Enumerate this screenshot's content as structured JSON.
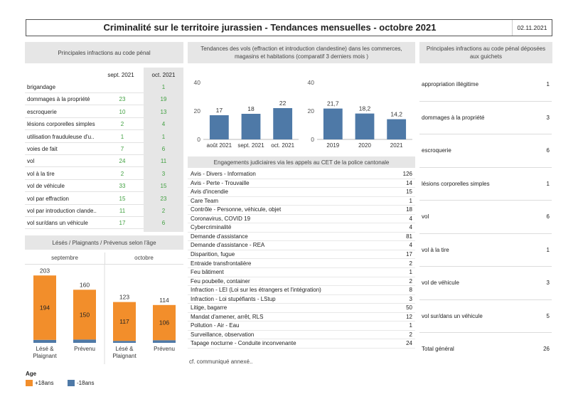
{
  "header": {
    "title": "Criminalité sur le territoire jurassien - Tendances mensuelles - octobre 2021",
    "date": "02.11.2021"
  },
  "left_table": {
    "title": "Principales infractions au code pénal",
    "col1": "sept. 2021",
    "col2": "oct. 2021",
    "rows": [
      {
        "label": "brigandage",
        "sep": "",
        "oct": "1"
      },
      {
        "label": "dommages à la propriété",
        "sep": "23",
        "oct": "19"
      },
      {
        "label": "escroquerie",
        "sep": "10",
        "oct": "13"
      },
      {
        "label": "lésions corporelles simples",
        "sep": "2",
        "oct": "4"
      },
      {
        "label": "utilisation frauduleuse d'u..",
        "sep": "1",
        "oct": "1"
      },
      {
        "label": "voies de fait",
        "sep": "7",
        "oct": "6"
      },
      {
        "label": "vol",
        "sep": "24",
        "oct": "11"
      },
      {
        "label": "vol à la tire",
        "sep": "2",
        "oct": "3"
      },
      {
        "label": "vol de véhicule",
        "sep": "33",
        "oct": "15"
      },
      {
        "label": "vol par effraction",
        "sep": "15",
        "oct": "23"
      },
      {
        "label": "vol par introduction clande..",
        "sep": "11",
        "oct": "2"
      },
      {
        "label": "vol sur/dans un véhicule",
        "sep": "17",
        "oct": "6"
      }
    ]
  },
  "victims": {
    "title": "Lésés / Plaignants / Prévenus selon l'âge",
    "groups": [
      "septembre",
      "octobre"
    ],
    "legend_title": "Age",
    "legend": [
      {
        "label": "+18ans",
        "color": "#f28e2b"
      },
      {
        "label": "-18ans",
        "color": "#4e79a7"
      }
    ]
  },
  "vols": {
    "title": "Tendances des vols (effraction et introduction clandestine) dans les commerces, magasins et habitations (comparatif 3 derniers mois )"
  },
  "engagements": {
    "title": "Engagements judiciaires via les appels au CET de la police cantonale",
    "rows": [
      {
        "label": "Avis - Divers - Information",
        "value": "126"
      },
      {
        "label": "Avis - Perte - Trouvaille",
        "value": "14"
      },
      {
        "label": "Avis d'incendie",
        "value": "15"
      },
      {
        "label": "Care Team",
        "value": "1"
      },
      {
        "label": "Contrôle - Personne, véhicule, objet",
        "value": "18"
      },
      {
        "label": "Coronavirus, COVID 19",
        "value": "4"
      },
      {
        "label": "Cybercriminalité",
        "value": "4"
      },
      {
        "label": "Demande d'assistance",
        "value": "81"
      },
      {
        "label": "Demande d'assistance - REA",
        "value": "4"
      },
      {
        "label": "Disparition, fugue",
        "value": "17"
      },
      {
        "label": "Entraide transfrontalière",
        "value": "2"
      },
      {
        "label": "Feu bâtiment",
        "value": "1"
      },
      {
        "label": "Feu poubelle, container",
        "value": "2"
      },
      {
        "label": "Infraction - LEI (Loi sur les étrangers et l'intégration)",
        "value": "8"
      },
      {
        "label": "Infraction - Loi stupéfiants - LStup",
        "value": "3"
      },
      {
        "label": "Litige, bagarre",
        "value": "50"
      },
      {
        "label": "Mandat d'amener, arrêt, RLS",
        "value": "12"
      },
      {
        "label": "Pollution - Air - Eau",
        "value": "1"
      },
      {
        "label": "Surveillance, observation",
        "value": "2"
      },
      {
        "label": "Tapage nocturne - Conduite inconvenante",
        "value": "24"
      }
    ],
    "footnote": "cf. communiqué annexé.."
  },
  "guichets": {
    "title": "Principales infractions au code pénal déposées aux guichets",
    "rows": [
      {
        "label": "appropriation illégitime",
        "value": "1"
      },
      {
        "label": "dommages à la propriété",
        "value": "3"
      },
      {
        "label": "escroquerie",
        "value": "6"
      },
      {
        "label": "lésions corporelles simples",
        "value": "1"
      },
      {
        "label": "vol",
        "value": "6"
      },
      {
        "label": "vol à la tire",
        "value": "1"
      },
      {
        "label": "vol de véhicule",
        "value": "3"
      },
      {
        "label": "vol sur/dans un véhicule",
        "value": "5"
      }
    ],
    "total_label": "Total général",
    "total_value": "26"
  },
  "chart_data": [
    {
      "type": "bar",
      "stacked": true,
      "groups": [
        "septembre",
        "octobre"
      ],
      "categories": [
        "Lésé & Plaignant",
        "Prévenu",
        "Lésé & Plaignant",
        "Prévenu"
      ],
      "totals": [
        203,
        160,
        123,
        114
      ],
      "series": [
        {
          "name": "+18ans",
          "color": "#f28e2b",
          "values": [
            194,
            150,
            117,
            106
          ],
          "labels": [
            "194",
            "150",
            "117",
            "106"
          ]
        },
        {
          "name": "-18ans",
          "color": "#4e79a7",
          "values": [
            9,
            10,
            6,
            8
          ]
        }
      ]
    },
    {
      "type": "bar",
      "categories": [
        "août 2021",
        "sept. 2021",
        "oct. 2021"
      ],
      "values": [
        17,
        18,
        22
      ],
      "labels": [
        "17",
        "18",
        "22"
      ],
      "yticks": [
        "40",
        "20",
        "0"
      ],
      "ylim": [
        0,
        40
      ],
      "color": "#4e79a7"
    },
    {
      "type": "bar",
      "categories": [
        "2019",
        "2020",
        "2021"
      ],
      "values": [
        21.7,
        18.2,
        14.2
      ],
      "labels": [
        "21,7",
        "18,2",
        "14,2"
      ],
      "yticks": [
        "40",
        "20",
        "0"
      ],
      "ylim": [
        0,
        40
      ],
      "color": "#4e79a7"
    }
  ]
}
